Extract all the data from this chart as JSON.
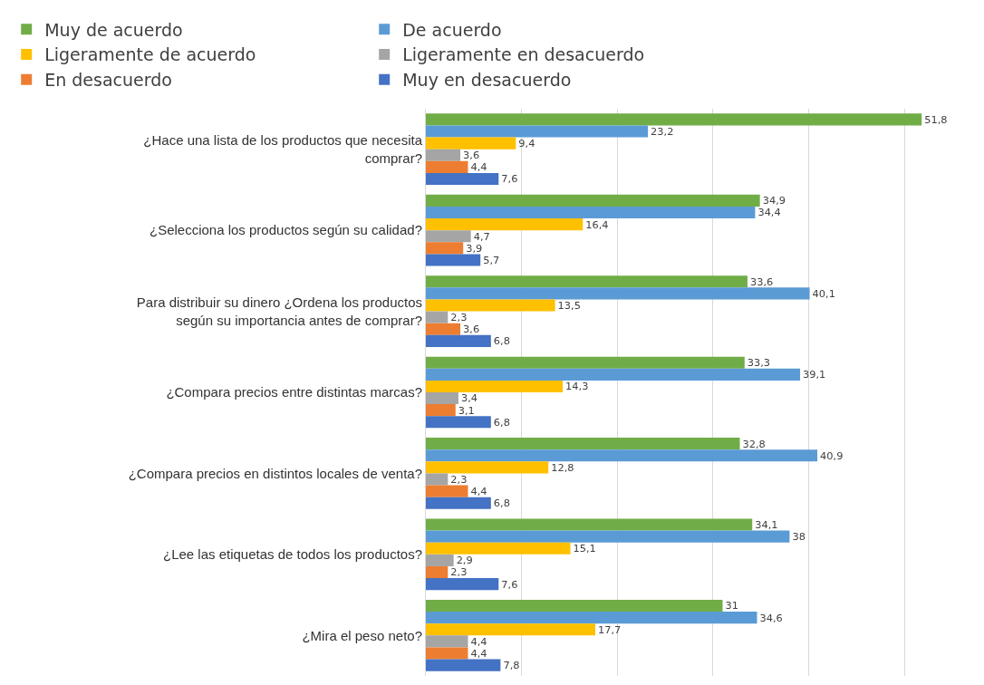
{
  "chart_data": {
    "type": "bar",
    "orientation": "horizontal",
    "categories": [
      "¿Hace una lista de los productos que necesita comprar?",
      "¿Selecciona los productos según su calidad?",
      "Para distribuir su dinero ¿Ordena los productos según su importancia antes de comprar?",
      "¿Compara precios entre distintas marcas?",
      "¿Compara precios en distintos locales de venta?",
      "¿Lee las etiquetas de todos los productos?",
      "¿Mira el peso neto?"
    ],
    "series": [
      {
        "name": "Muy de acuerdo",
        "color": "#70ad47",
        "values": [
          51.8,
          34.9,
          33.6,
          33.3,
          32.8,
          34.1,
          31
        ],
        "value_labels": [
          "51,8",
          "34,9",
          "33,6",
          "33,3",
          "32,8",
          "34,1",
          "31"
        ]
      },
      {
        "name": "De acuerdo",
        "color": "#5b9bd5",
        "values": [
          23.2,
          34.4,
          40.1,
          39.1,
          40.9,
          38,
          34.6
        ],
        "value_labels": [
          "23,2",
          "34,4",
          "40,1",
          "39,1",
          "40,9",
          "38",
          "34,6"
        ]
      },
      {
        "name": "Ligeramente de acuerdo",
        "color": "#ffc000",
        "values": [
          9.4,
          16.4,
          13.5,
          14.3,
          12.8,
          15.1,
          17.7
        ],
        "value_labels": [
          "9,4",
          "16,4",
          "13,5",
          "14,3",
          "12,8",
          "15,1",
          "17,7"
        ]
      },
      {
        "name": "Ligeramente en desacuerdo",
        "color": "#a5a5a5",
        "values": [
          3.6,
          4.7,
          2.3,
          3.4,
          2.3,
          2.9,
          4.4
        ],
        "value_labels": [
          "3,6",
          "4,7",
          "2,3",
          "3,4",
          "2,3",
          "2,9",
          "4,4"
        ]
      },
      {
        "name": "En desacuerdo",
        "color": "#ed7d31",
        "values": [
          4.4,
          3.9,
          3.6,
          3.1,
          4.4,
          2.3,
          4.4
        ],
        "value_labels": [
          "4,4",
          "3,9",
          "3,6",
          "3,1",
          "4,4",
          "2,3",
          "4,4"
        ]
      },
      {
        "name": "Muy en desacuerdo",
        "color": "#4472c4",
        "values": [
          7.6,
          5.7,
          6.8,
          6.8,
          6.8,
          7.6,
          7.8
        ],
        "value_labels": [
          "7,6",
          "5,7",
          "6,8",
          "6,8",
          "6,8",
          "7,6",
          "7,8"
        ]
      }
    ],
    "grid": "x",
    "legend": "top"
  }
}
